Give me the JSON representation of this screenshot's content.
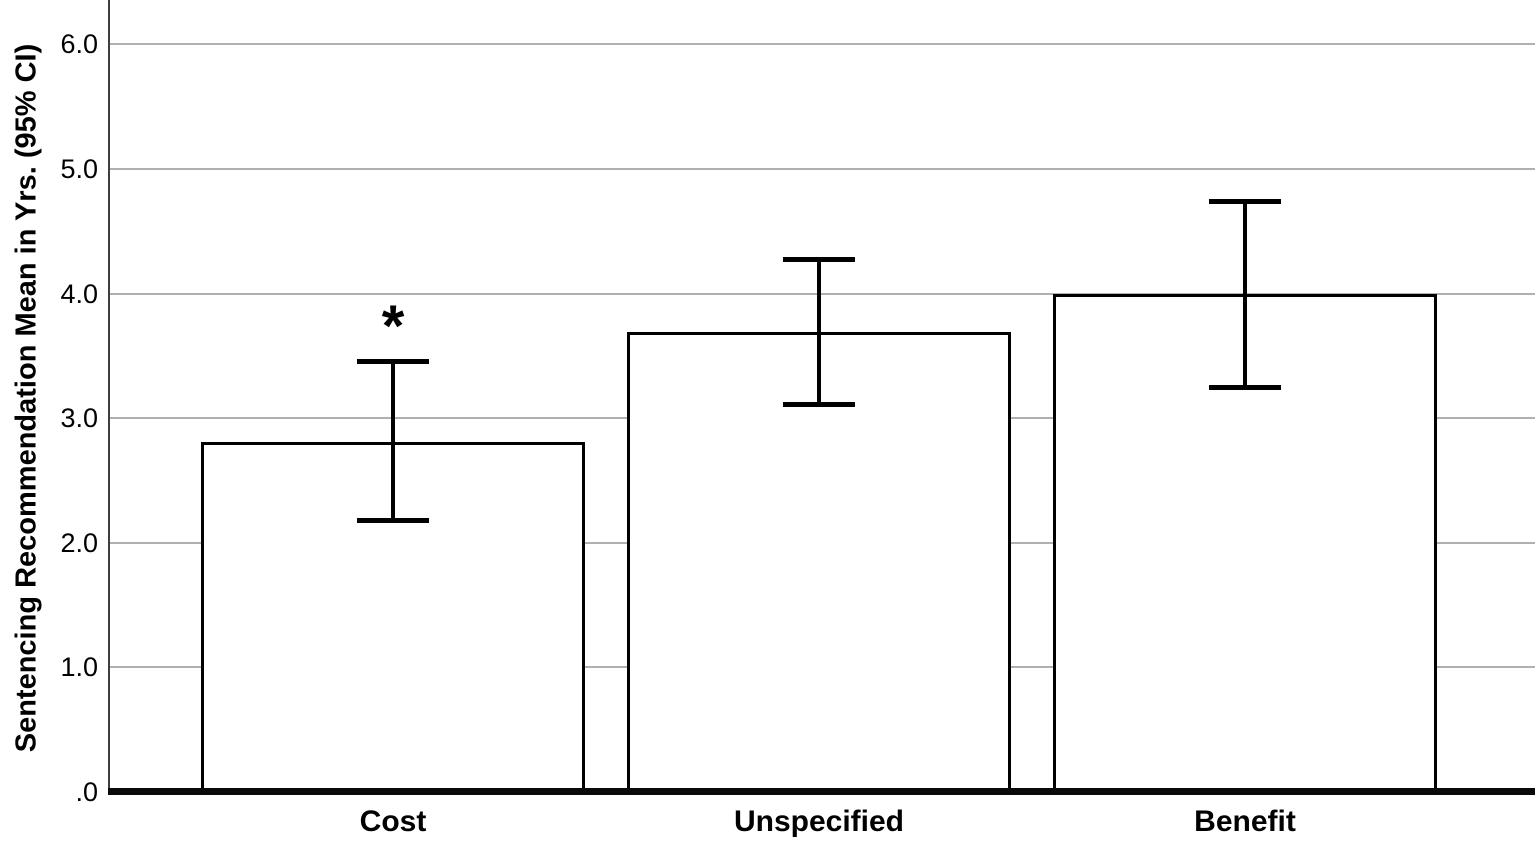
{
  "chart_data": {
    "type": "bar",
    "title": "",
    "xlabel": "",
    "ylabel": "Sentencing Recommendation Mean in Yrs. (95% CI)",
    "categories": [
      "Cost",
      "Unspecified",
      "Benefit"
    ],
    "values": [
      2.81,
      3.69,
      4.0
    ],
    "ci_lower": [
      2.18,
      3.11,
      3.25
    ],
    "ci_upper": [
      3.46,
      4.28,
      4.74
    ],
    "ylim": [
      0,
      6.36
    ],
    "grid": "horizontal-only",
    "legend": "none",
    "yticks": [
      {
        "value": 0,
        "label": ".0"
      },
      {
        "value": 1,
        "label": "1.0"
      },
      {
        "value": 2,
        "label": "2.0"
      },
      {
        "value": 3,
        "label": "3.0"
      },
      {
        "value": 4,
        "label": "4.0"
      },
      {
        "value": 5,
        "label": "5.0"
      },
      {
        "value": 6,
        "label": "6.0"
      }
    ],
    "annotations": [
      {
        "category": "Cost",
        "symbol": "*"
      }
    ]
  },
  "colors": {
    "background": "#ffffff",
    "bar_fill": "#ffffff",
    "bar_border": "#000000",
    "error_bar": "#000000",
    "gridline": "#b0b0b0",
    "y_axis_line": "#3d3d3d",
    "x_baseline": "#0a0a0a",
    "text": "#000000"
  }
}
